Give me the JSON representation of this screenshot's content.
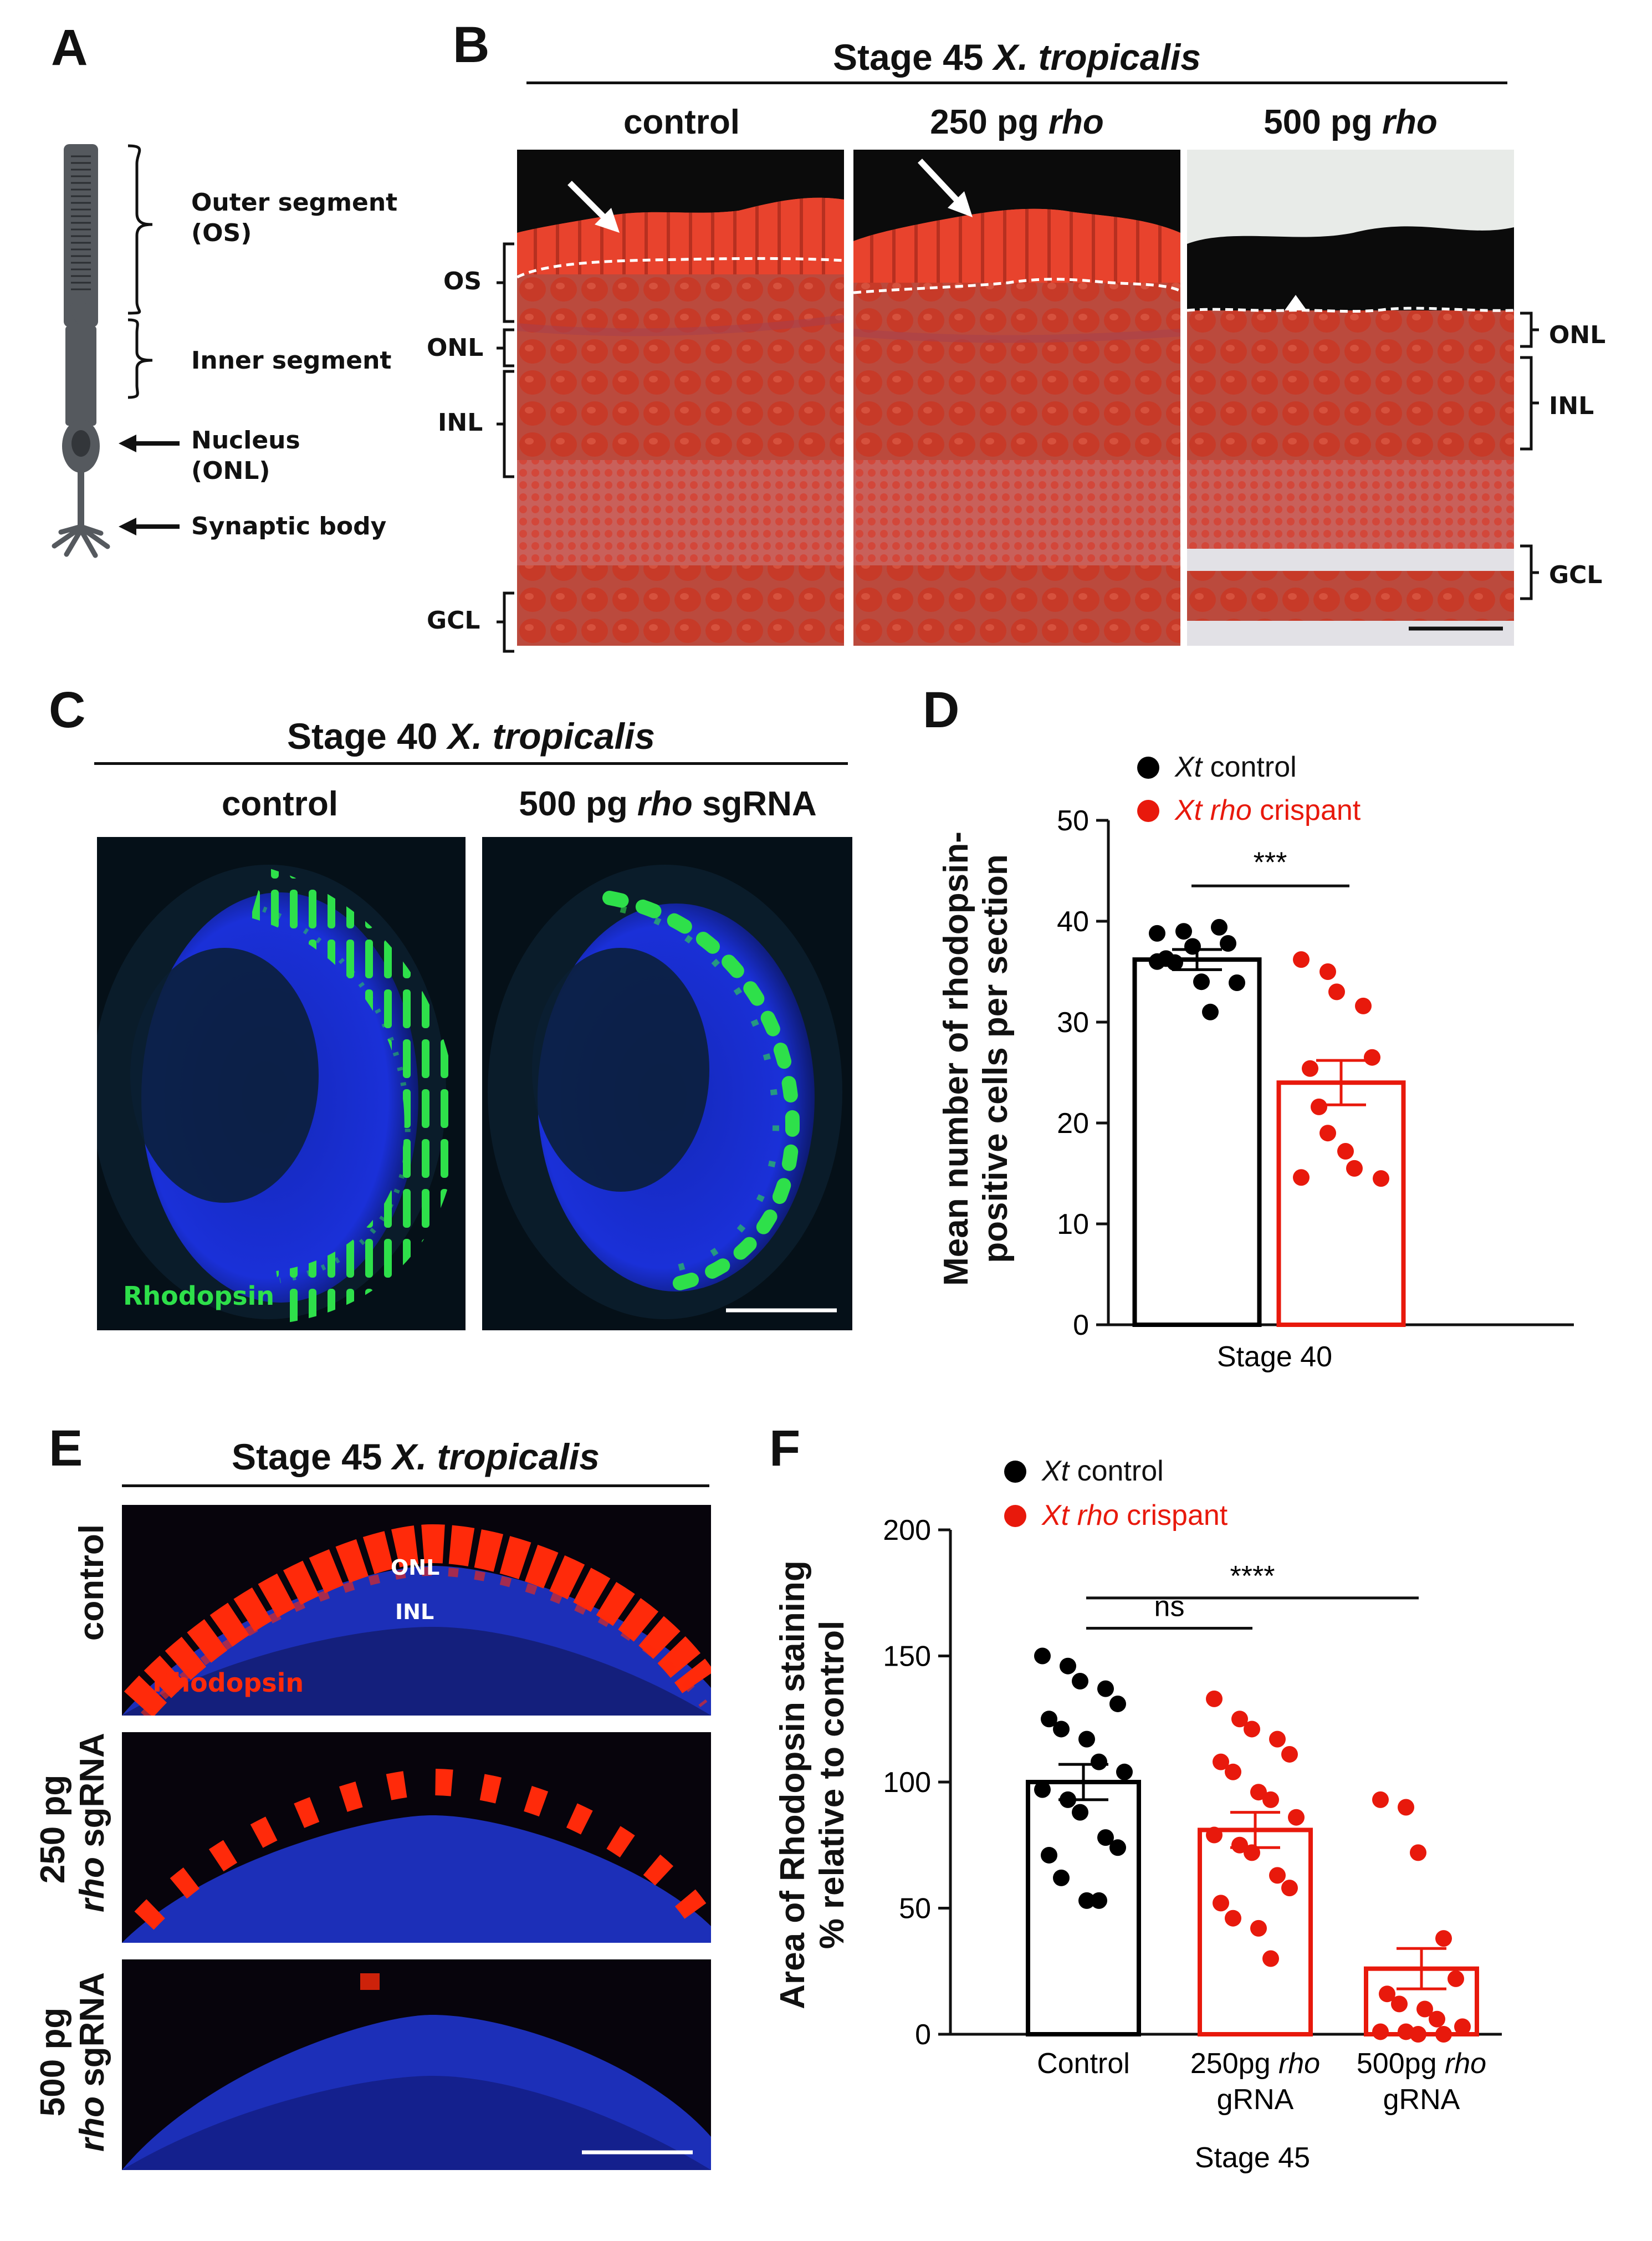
{
  "panel_labels": {
    "a": "A",
    "b": "B",
    "c": "C",
    "d": "D",
    "e": "E",
    "f": "F"
  },
  "panel_a": {
    "labels": {
      "outer_segment": "Outer segment\n(OS)",
      "inner_segment": "Inner segment",
      "nucleus": "Nucleus\n(ONL)",
      "synaptic_body": "Synaptic body"
    },
    "colors": {
      "cell": "#55595e"
    }
  },
  "panel_b": {
    "stage": "Stage 45",
    "species": "X. tropicalis",
    "columns": [
      {
        "prefix": "control",
        "italic": ""
      },
      {
        "prefix": "250 pg ",
        "italic": "rho"
      },
      {
        "prefix": "500 pg ",
        "italic": "rho"
      }
    ],
    "left_layers": [
      "OS",
      "ONL",
      "INL",
      "GCL"
    ],
    "right_layers": [
      "ONL",
      "INL",
      "GCL"
    ],
    "colors": {
      "stain": "#d33a2a",
      "background": "#0d0d0d"
    }
  },
  "panel_c": {
    "stage": "Stage 40",
    "species": "X. tropicalis",
    "columns": [
      {
        "prefix": "control",
        "italic": "",
        "suffix": ""
      },
      {
        "prefix": "500 pg ",
        "italic": "rho",
        "suffix": " sgRNA"
      }
    ],
    "stain_label": "Rhodopsin",
    "colors": {
      "stain": "#2ee04a",
      "nuclei": "#1a2fd6"
    }
  },
  "panel_d": {
    "legend": [
      {
        "italic": "Xt",
        "text": " control",
        "color": "#000000"
      },
      {
        "italic": "Xt rho",
        "text": " crispant",
        "color": "#e8190c"
      }
    ],
    "significance": "***",
    "yticks": [
      "0",
      "10",
      "20",
      "30",
      "40",
      "50"
    ],
    "ylabel_line1": "Mean number of rhodopsin-",
    "ylabel_line2": "positive cells per section",
    "xlabel": "Stage 40"
  },
  "panel_e": {
    "stage": "Stage 45",
    "species": "X. tropicalis",
    "rows": [
      {
        "line1": "control",
        "line2_prefix": "",
        "line2_italic": ""
      },
      {
        "line1": "250 pg",
        "line2_italic": "rho",
        "line2_suffix": " sgRNA"
      },
      {
        "line1": "500 pg",
        "line2_italic": "rho",
        "line2_suffix": " sgRNA"
      }
    ],
    "onl": "ONL",
    "inl": "INL",
    "stain_label": "Rhodopsin",
    "colors": {
      "stain": "#ff2a0a",
      "nuclei": "#1c2fb8"
    }
  },
  "panel_f": {
    "legend": [
      {
        "italic": "Xt",
        "text": " control",
        "color": "#000000"
      },
      {
        "italic": "Xt rho",
        "text": " crispant",
        "color": "#e8190c"
      }
    ],
    "sig_ns": "ns",
    "sig_main": "****",
    "yticks": [
      "0",
      "50",
      "100",
      "150",
      "200"
    ],
    "ylabel_line1": "Area of Rhodopsin staining",
    "ylabel_line2": "% relative to control",
    "categories": [
      {
        "line1_prefix": "Control",
        "line1_italic": "",
        "line2": ""
      },
      {
        "line1_prefix": "250pg ",
        "line1_italic": "rho",
        "line2": "gRNA"
      },
      {
        "line1_prefix": "500pg ",
        "line1_italic": "rho",
        "line2": "gRNA"
      }
    ],
    "xlabel": "Stage 45"
  },
  "chart_data": [
    {
      "type": "bar",
      "panel": "D",
      "categories": [
        "Stage 40"
      ],
      "series": [
        {
          "name": "Xt control",
          "mean": 36.2,
          "sem": 1.0,
          "points": [
            38.8,
            39.0,
            37.5,
            39.4,
            37.8,
            36.3,
            35.9,
            34.0,
            31.0,
            33.9,
            36.0
          ]
        },
        {
          "name": "Xt rho crispant",
          "mean": 24.0,
          "sem": 2.2,
          "points": [
            36.2,
            35.0,
            33.0,
            31.6,
            26.5,
            25.4,
            21.6,
            17.2,
            15.5,
            14.5,
            14.6,
            19.0
          ]
        }
      ],
      "ylabel": "Mean number of rhodopsin-positive cells per section",
      "xlabel": "Stage 40",
      "ylim": [
        0,
        50
      ],
      "annotations": [
        "***"
      ],
      "colors": {
        "control": "#000000",
        "crispant": "#e8190c"
      }
    },
    {
      "type": "bar",
      "panel": "F",
      "categories": [
        "Control",
        "250pg rho gRNA",
        "500pg rho gRNA"
      ],
      "values": [
        100,
        81,
        26
      ],
      "sem": [
        7,
        7,
        8
      ],
      "points": [
        [
          150,
          146,
          140,
          137,
          131,
          125,
          121,
          117,
          108,
          104,
          97,
          93,
          88,
          78,
          74,
          71,
          62,
          53,
          53
        ],
        [
          133,
          125,
          121,
          117,
          111,
          108,
          104,
          96,
          93,
          86,
          79,
          75,
          72,
          63,
          58,
          52,
          46,
          42,
          30
        ],
        [
          93,
          90,
          72,
          38,
          22,
          16,
          12,
          10,
          6,
          3,
          1,
          1,
          0,
          0
        ]
      ],
      "ylabel": "Area of Rhodopsin staining % relative to control",
      "xlabel": "Stage 45",
      "ylim": [
        0,
        200
      ],
      "annotations": [
        "ns",
        "****"
      ],
      "colors": {
        "control": "#000000",
        "crispant": "#e8190c"
      }
    }
  ]
}
